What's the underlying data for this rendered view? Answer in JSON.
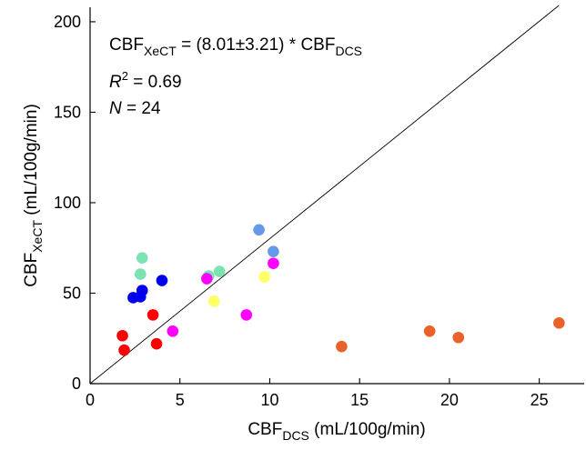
{
  "chart_data": {
    "type": "scatter",
    "xlabel": {
      "main": "CBF",
      "sub": "DCS",
      "unit": " (mL/100g/min)"
    },
    "ylabel": {
      "main": "CBF",
      "sub": "XeCT",
      "unit": " (mL/100g/min)"
    },
    "xlim": [
      0,
      27.5
    ],
    "ylim": [
      0,
      208
    ],
    "xticks": [
      0,
      5,
      10,
      15,
      20,
      25
    ],
    "yticks": [
      0,
      50,
      100,
      150,
      200
    ],
    "grid": false,
    "annotations": {
      "equation": {
        "lhs": "CBF",
        "lhs_sub": "XeCT",
        "mid": " = (8.01±3.21) * CBF",
        "rhs_sub": "DCS"
      },
      "r2": {
        "sym": "R",
        "sup": "2",
        "rest": " = 0.69"
      },
      "n": {
        "sym": "N",
        "rest": " = 24"
      }
    },
    "fit_line": {
      "slope": 8.01,
      "x": [
        0,
        26.1
      ]
    },
    "series": [
      {
        "color": "#ff0000",
        "points": [
          [
            1.8,
            26.5
          ],
          [
            1.9,
            18.5
          ],
          [
            3.5,
            38.0
          ],
          [
            3.7,
            22.0
          ]
        ]
      },
      {
        "color": "#0000ee",
        "points": [
          [
            2.4,
            47.5
          ],
          [
            2.8,
            48.0
          ],
          [
            2.9,
            51.5
          ],
          [
            4.0,
            57.0
          ]
        ]
      },
      {
        "color": "#7ae3b0",
        "points": [
          [
            2.8,
            60.5
          ],
          [
            2.9,
            69.5
          ],
          [
            6.6,
            59.5
          ],
          [
            7.2,
            62.0
          ]
        ]
      },
      {
        "color": "#ff00ff",
        "points": [
          [
            4.6,
            29.0
          ],
          [
            6.5,
            58.0
          ],
          [
            8.7,
            38.0
          ],
          [
            10.2,
            66.5
          ]
        ]
      },
      {
        "color": "#ffff66",
        "points": [
          [
            6.9,
            45.5
          ],
          [
            9.7,
            59.0
          ]
        ]
      },
      {
        "color": "#6699e6",
        "points": [
          [
            9.4,
            85.0
          ],
          [
            10.2,
            73.0
          ]
        ]
      },
      {
        "color": "#e8622a",
        "points": [
          [
            14.0,
            20.5
          ],
          [
            18.9,
            29.0
          ],
          [
            20.5,
            25.5
          ],
          [
            26.1,
            33.5
          ]
        ]
      }
    ]
  }
}
